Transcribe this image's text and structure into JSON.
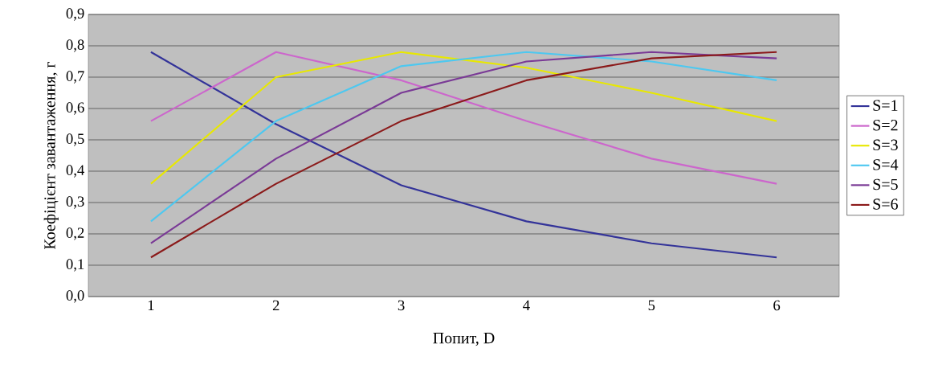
{
  "chart_data": {
    "type": "line",
    "xlabel": "Попит, D",
    "ylabel": "Коефіцієнт завантаження, г",
    "categories": [
      "1",
      "2",
      "3",
      "4",
      "5",
      "6"
    ],
    "ylim": [
      0,
      0.9
    ],
    "yticks": [
      {
        "value": 0,
        "label": "0,0"
      },
      {
        "value": 0.1,
        "label": "0,1"
      },
      {
        "value": 0.2,
        "label": "0,2"
      },
      {
        "value": 0.3,
        "label": "0,3"
      },
      {
        "value": 0.4,
        "label": "0,4"
      },
      {
        "value": 0.5,
        "label": "0,5"
      },
      {
        "value": 0.6,
        "label": "0,6"
      },
      {
        "value": 0.7,
        "label": "0,7"
      },
      {
        "value": 0.8,
        "label": "0,8"
      },
      {
        "value": 0.9,
        "label": "0,9"
      }
    ],
    "grid": "y",
    "legend": "right",
    "marker": "none",
    "line_style": "solid",
    "series": [
      {
        "name": "S=1",
        "color": "#333399",
        "values": [
          0.78,
          0.55,
          0.355,
          0.24,
          0.17,
          0.125
        ]
      },
      {
        "name": "S=2",
        "color": "#cc66cc",
        "values": [
          0.56,
          0.78,
          0.69,
          0.56,
          0.44,
          0.36
        ]
      },
      {
        "name": "S=3",
        "color": "#e8e800",
        "values": [
          0.36,
          0.7,
          0.78,
          0.73,
          0.65,
          0.56
        ]
      },
      {
        "name": "S=4",
        "color": "#4dc8f0",
        "values": [
          0.24,
          0.56,
          0.735,
          0.78,
          0.75,
          0.69
        ]
      },
      {
        "name": "S=5",
        "color": "#7a3a96",
        "values": [
          0.17,
          0.44,
          0.65,
          0.75,
          0.78,
          0.76
        ]
      },
      {
        "name": "S=6",
        "color": "#8b1a1a",
        "values": [
          0.125,
          0.36,
          0.56,
          0.69,
          0.76,
          0.78
        ]
      }
    ]
  }
}
